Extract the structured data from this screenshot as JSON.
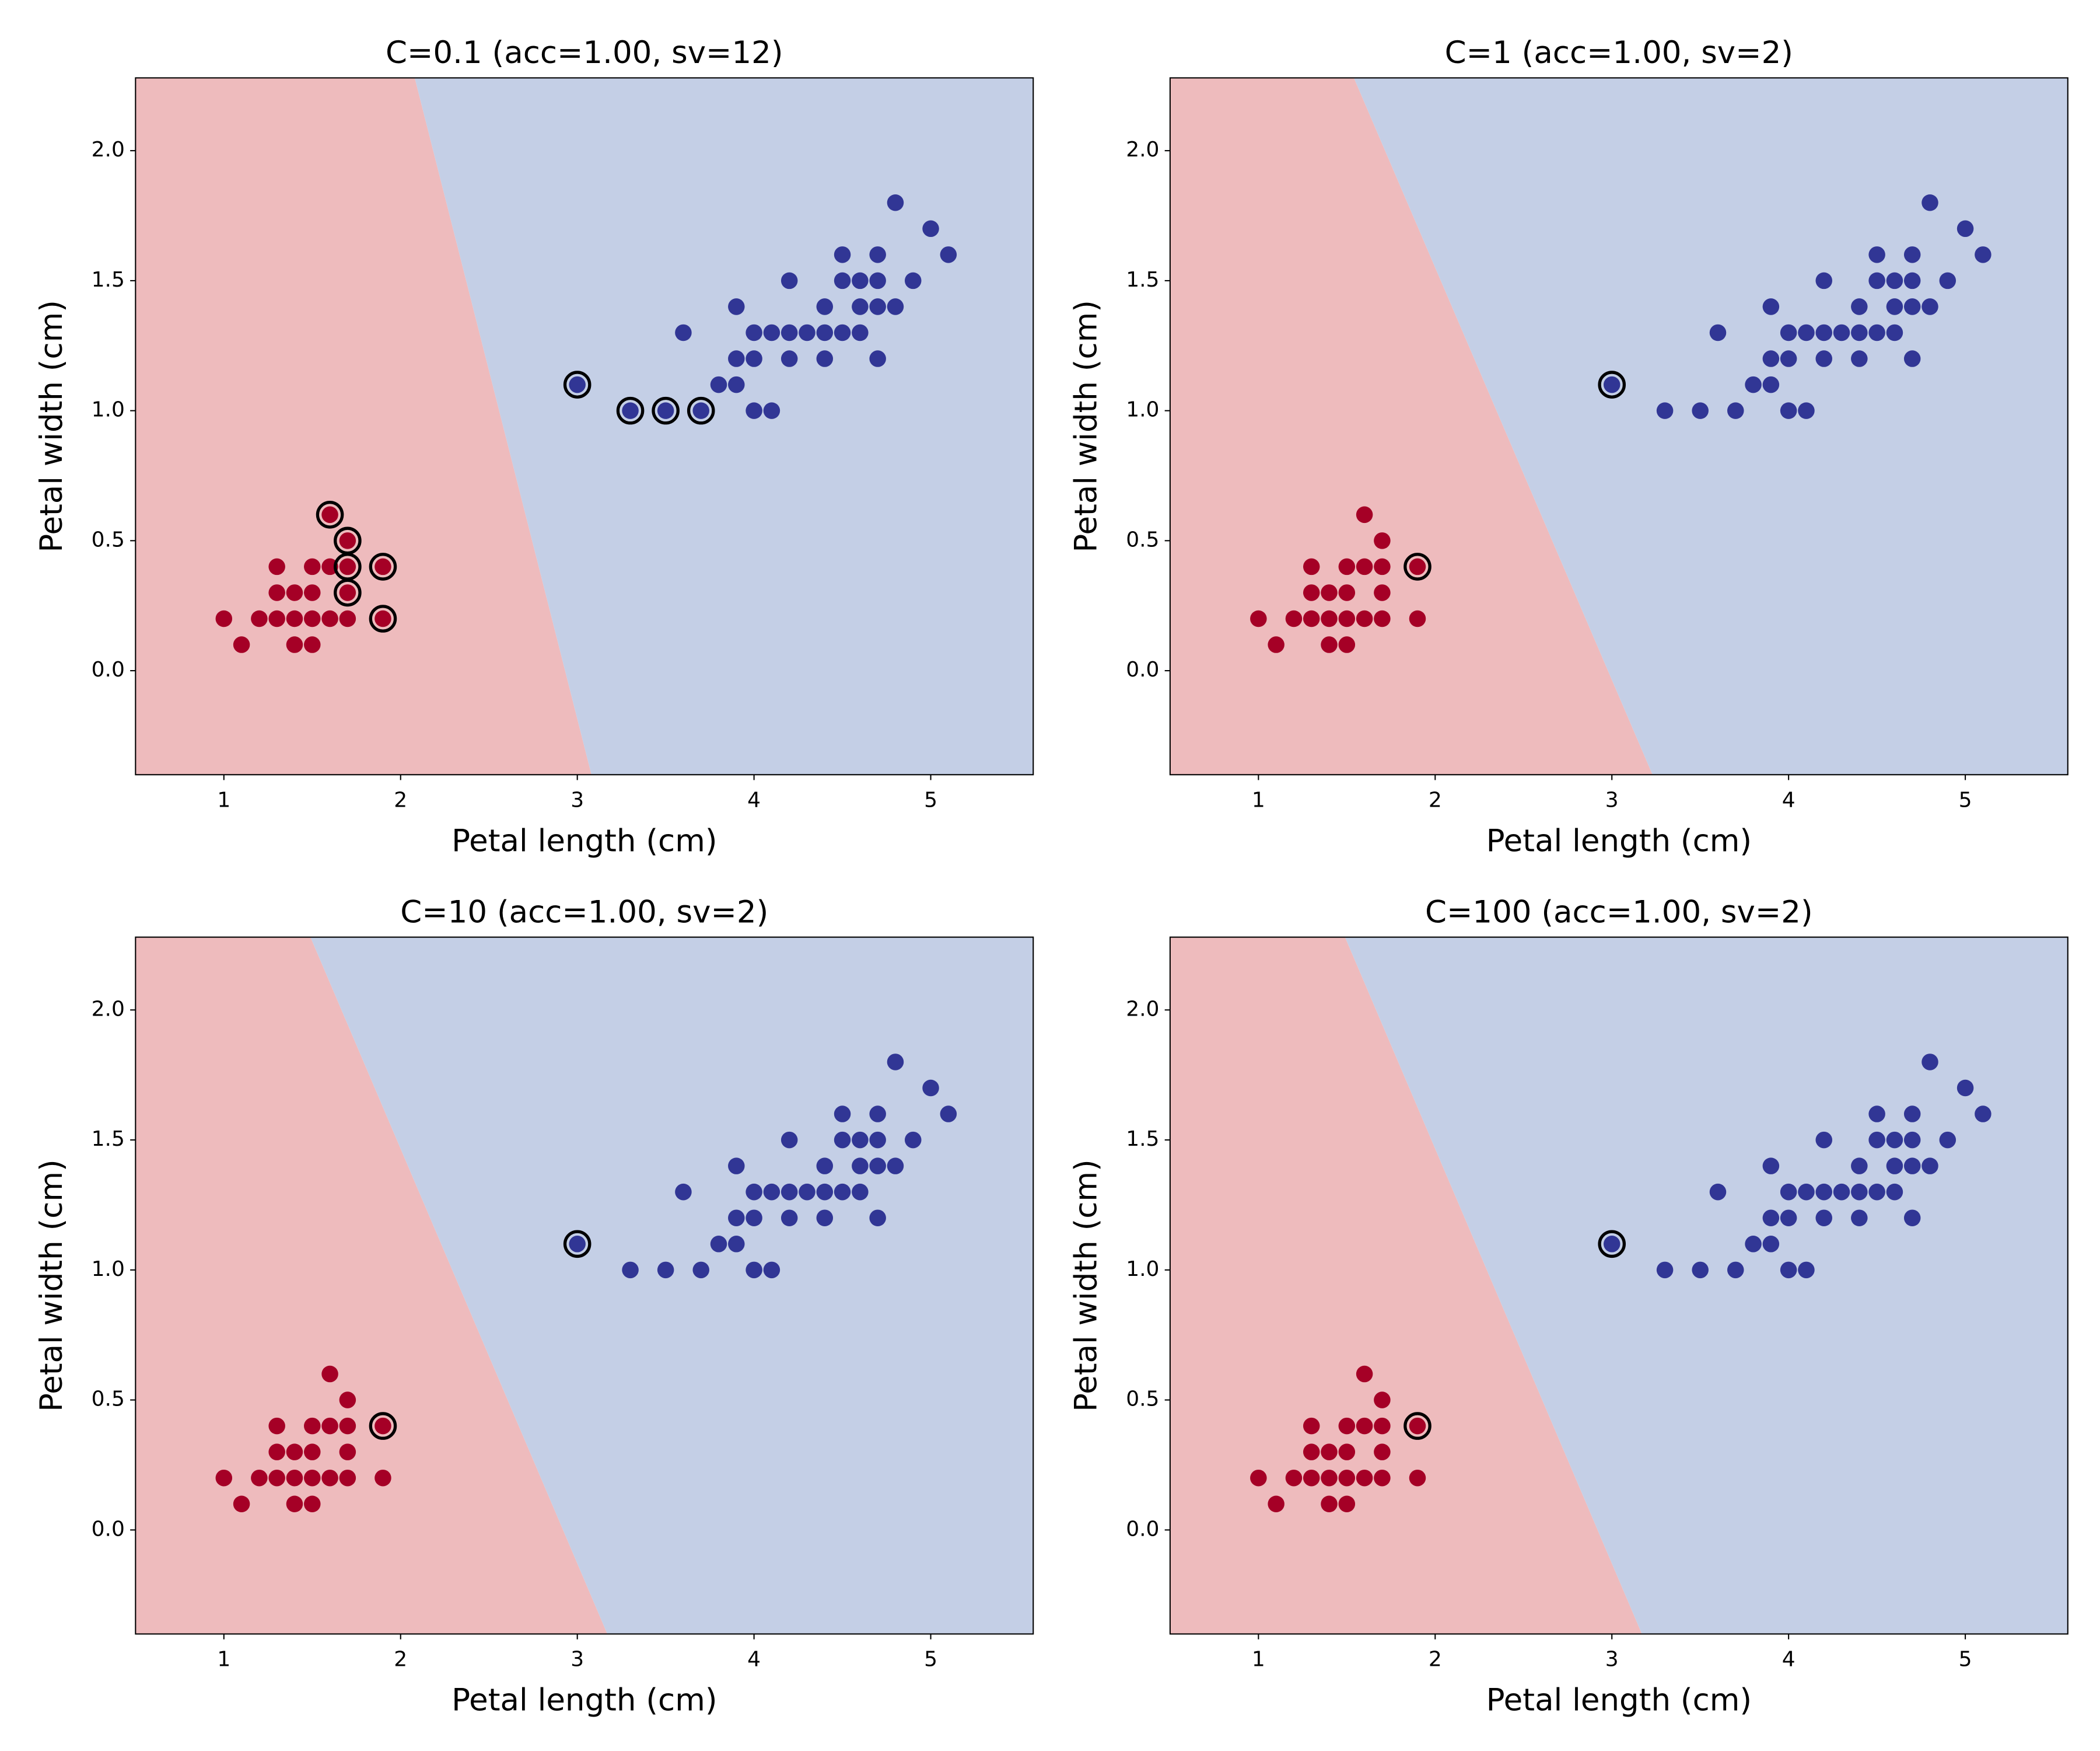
{
  "figure": {
    "background": "#ffffff"
  },
  "chart_data": [
    {
      "type": "scatter",
      "title": "C=0.1 (acc=1.00, sv=12)",
      "xlabel": "Petal length (cm)",
      "ylabel": "Petal width (cm)",
      "xlim": [
        0.5,
        5.58
      ],
      "ylim": [
        -0.4,
        2.28
      ],
      "xticks": [
        "1",
        "2",
        "3",
        "4",
        "5"
      ],
      "yticks": [
        "0.0",
        "0.5",
        "1.0",
        "1.5",
        "2.0"
      ],
      "grid": false,
      "decision_boundary": [
        [
          2.08,
          2.28
        ],
        [
          3.08,
          -0.4
        ]
      ],
      "series": [
        {
          "color": "#a50026",
          "points": [
            [
              1.0,
              0.2
            ],
            [
              1.1,
              0.1
            ],
            [
              1.2,
              0.2
            ],
            [
              1.3,
              0.2
            ],
            [
              1.3,
              0.3
            ],
            [
              1.3,
              0.4
            ],
            [
              1.4,
              0.1
            ],
            [
              1.4,
              0.2
            ],
            [
              1.4,
              0.3
            ],
            [
              1.5,
              0.1
            ],
            [
              1.5,
              0.2
            ],
            [
              1.5,
              0.3
            ],
            [
              1.5,
              0.4
            ],
            [
              1.6,
              0.2
            ],
            [
              1.6,
              0.4
            ],
            [
              1.6,
              0.6
            ],
            [
              1.7,
              0.2
            ],
            [
              1.7,
              0.3
            ],
            [
              1.7,
              0.4
            ],
            [
              1.7,
              0.5
            ],
            [
              1.9,
              0.2
            ],
            [
              1.9,
              0.4
            ]
          ]
        },
        {
          "color": "#313695",
          "points": [
            [
              3.0,
              1.1
            ],
            [
              3.3,
              1.0
            ],
            [
              3.5,
              1.0
            ],
            [
              3.6,
              1.3
            ],
            [
              3.7,
              1.0
            ],
            [
              3.8,
              1.1
            ],
            [
              3.9,
              1.1
            ],
            [
              3.9,
              1.2
            ],
            [
              3.9,
              1.4
            ],
            [
              4.0,
              1.0
            ],
            [
              4.0,
              1.2
            ],
            [
              4.0,
              1.3
            ],
            [
              4.1,
              1.0
            ],
            [
              4.1,
              1.3
            ],
            [
              4.2,
              1.2
            ],
            [
              4.2,
              1.3
            ],
            [
              4.2,
              1.5
            ],
            [
              4.3,
              1.3
            ],
            [
              4.4,
              1.2
            ],
            [
              4.4,
              1.3
            ],
            [
              4.4,
              1.4
            ],
            [
              4.5,
              1.3
            ],
            [
              4.5,
              1.5
            ],
            [
              4.5,
              1.6
            ],
            [
              4.6,
              1.3
            ],
            [
              4.6,
              1.4
            ],
            [
              4.6,
              1.5
            ],
            [
              4.7,
              1.2
            ],
            [
              4.7,
              1.4
            ],
            [
              4.7,
              1.5
            ],
            [
              4.7,
              1.6
            ],
            [
              4.8,
              1.4
            ],
            [
              4.8,
              1.8
            ],
            [
              4.9,
              1.5
            ],
            [
              5.0,
              1.7
            ],
            [
              5.1,
              1.6
            ]
          ]
        }
      ],
      "support_vectors": [
        [
          3.0,
          1.1
        ],
        [
          3.3,
          1.0
        ],
        [
          3.5,
          1.0
        ],
        [
          3.7,
          1.0
        ],
        [
          1.6,
          0.6
        ],
        [
          1.7,
          0.5
        ],
        [
          1.7,
          0.4
        ],
        [
          1.7,
          0.3
        ],
        [
          1.9,
          0.4
        ],
        [
          1.9,
          0.2
        ]
      ],
      "region_colors": {
        "left": "#eebbbd",
        "right": "#c4cfe6"
      }
    },
    {
      "type": "scatter",
      "title": "C=1 (acc=1.00, sv=2)",
      "xlabel": "Petal length (cm)",
      "ylabel": "Petal width (cm)",
      "xlim": [
        0.5,
        5.58
      ],
      "ylim": [
        -0.4,
        2.28
      ],
      "xticks": [
        "1",
        "2",
        "3",
        "4",
        "5"
      ],
      "yticks": [
        "0.0",
        "0.5",
        "1.0",
        "1.5",
        "2.0"
      ],
      "grid": false,
      "decision_boundary": [
        [
          1.54,
          2.28
        ],
        [
          3.23,
          -0.4
        ]
      ],
      "series": [
        {
          "color": "#a50026",
          "points": [
            [
              1.0,
              0.2
            ],
            [
              1.1,
              0.1
            ],
            [
              1.2,
              0.2
            ],
            [
              1.3,
              0.2
            ],
            [
              1.3,
              0.3
            ],
            [
              1.3,
              0.4
            ],
            [
              1.4,
              0.1
            ],
            [
              1.4,
              0.2
            ],
            [
              1.4,
              0.3
            ],
            [
              1.5,
              0.1
            ],
            [
              1.5,
              0.2
            ],
            [
              1.5,
              0.3
            ],
            [
              1.5,
              0.4
            ],
            [
              1.6,
              0.2
            ],
            [
              1.6,
              0.4
            ],
            [
              1.6,
              0.6
            ],
            [
              1.7,
              0.2
            ],
            [
              1.7,
              0.3
            ],
            [
              1.7,
              0.4
            ],
            [
              1.7,
              0.5
            ],
            [
              1.9,
              0.2
            ],
            [
              1.9,
              0.4
            ]
          ]
        },
        {
          "color": "#313695",
          "points": [
            [
              3.0,
              1.1
            ],
            [
              3.3,
              1.0
            ],
            [
              3.5,
              1.0
            ],
            [
              3.6,
              1.3
            ],
            [
              3.7,
              1.0
            ],
            [
              3.8,
              1.1
            ],
            [
              3.9,
              1.1
            ],
            [
              3.9,
              1.2
            ],
            [
              3.9,
              1.4
            ],
            [
              4.0,
              1.0
            ],
            [
              4.0,
              1.2
            ],
            [
              4.0,
              1.3
            ],
            [
              4.1,
              1.0
            ],
            [
              4.1,
              1.3
            ],
            [
              4.2,
              1.2
            ],
            [
              4.2,
              1.3
            ],
            [
              4.2,
              1.5
            ],
            [
              4.3,
              1.3
            ],
            [
              4.4,
              1.2
            ],
            [
              4.4,
              1.3
            ],
            [
              4.4,
              1.4
            ],
            [
              4.5,
              1.3
            ],
            [
              4.5,
              1.5
            ],
            [
              4.5,
              1.6
            ],
            [
              4.6,
              1.3
            ],
            [
              4.6,
              1.4
            ],
            [
              4.6,
              1.5
            ],
            [
              4.7,
              1.2
            ],
            [
              4.7,
              1.4
            ],
            [
              4.7,
              1.5
            ],
            [
              4.7,
              1.6
            ],
            [
              4.8,
              1.4
            ],
            [
              4.8,
              1.8
            ],
            [
              4.9,
              1.5
            ],
            [
              5.0,
              1.7
            ],
            [
              5.1,
              1.6
            ]
          ]
        }
      ],
      "support_vectors": [
        [
          3.0,
          1.1
        ],
        [
          1.9,
          0.4
        ]
      ],
      "region_colors": {
        "left": "#eebbbd",
        "right": "#c4cfe6"
      }
    },
    {
      "type": "scatter",
      "title": "C=10 (acc=1.00, sv=2)",
      "xlabel": "Petal length (cm)",
      "ylabel": "Petal width (cm)",
      "xlim": [
        0.5,
        5.58
      ],
      "ylim": [
        -0.4,
        2.28
      ],
      "xticks": [
        "1",
        "2",
        "3",
        "4",
        "5"
      ],
      "yticks": [
        "0.0",
        "0.5",
        "1.0",
        "1.5",
        "2.0"
      ],
      "grid": false,
      "decision_boundary": [
        [
          1.49,
          2.28
        ],
        [
          3.17,
          -0.4
        ]
      ],
      "series": [
        {
          "color": "#a50026",
          "points": [
            [
              1.0,
              0.2
            ],
            [
              1.1,
              0.1
            ],
            [
              1.2,
              0.2
            ],
            [
              1.3,
              0.2
            ],
            [
              1.3,
              0.3
            ],
            [
              1.3,
              0.4
            ],
            [
              1.4,
              0.1
            ],
            [
              1.4,
              0.2
            ],
            [
              1.4,
              0.3
            ],
            [
              1.5,
              0.1
            ],
            [
              1.5,
              0.2
            ],
            [
              1.5,
              0.3
            ],
            [
              1.5,
              0.4
            ],
            [
              1.6,
              0.2
            ],
            [
              1.6,
              0.4
            ],
            [
              1.6,
              0.6
            ],
            [
              1.7,
              0.2
            ],
            [
              1.7,
              0.3
            ],
            [
              1.7,
              0.4
            ],
            [
              1.7,
              0.5
            ],
            [
              1.9,
              0.2
            ],
            [
              1.9,
              0.4
            ]
          ]
        },
        {
          "color": "#313695",
          "points": [
            [
              3.0,
              1.1
            ],
            [
              3.3,
              1.0
            ],
            [
              3.5,
              1.0
            ],
            [
              3.6,
              1.3
            ],
            [
              3.7,
              1.0
            ],
            [
              3.8,
              1.1
            ],
            [
              3.9,
              1.1
            ],
            [
              3.9,
              1.2
            ],
            [
              3.9,
              1.4
            ],
            [
              4.0,
              1.0
            ],
            [
              4.0,
              1.2
            ],
            [
              4.0,
              1.3
            ],
            [
              4.1,
              1.0
            ],
            [
              4.1,
              1.3
            ],
            [
              4.2,
              1.2
            ],
            [
              4.2,
              1.3
            ],
            [
              4.2,
              1.5
            ],
            [
              4.3,
              1.3
            ],
            [
              4.4,
              1.2
            ],
            [
              4.4,
              1.3
            ],
            [
              4.4,
              1.4
            ],
            [
              4.5,
              1.3
            ],
            [
              4.5,
              1.5
            ],
            [
              4.5,
              1.6
            ],
            [
              4.6,
              1.3
            ],
            [
              4.6,
              1.4
            ],
            [
              4.6,
              1.5
            ],
            [
              4.7,
              1.2
            ],
            [
              4.7,
              1.4
            ],
            [
              4.7,
              1.5
            ],
            [
              4.7,
              1.6
            ],
            [
              4.8,
              1.4
            ],
            [
              4.8,
              1.8
            ],
            [
              4.9,
              1.5
            ],
            [
              5.0,
              1.7
            ],
            [
              5.1,
              1.6
            ]
          ]
        }
      ],
      "support_vectors": [
        [
          3.0,
          1.1
        ],
        [
          1.9,
          0.4
        ]
      ],
      "region_colors": {
        "left": "#eebbbd",
        "right": "#c4cfe6"
      }
    },
    {
      "type": "scatter",
      "title": "C=100 (acc=1.00, sv=2)",
      "xlabel": "Petal length (cm)",
      "ylabel": "Petal width (cm)",
      "xlim": [
        0.5,
        5.58
      ],
      "ylim": [
        -0.4,
        2.28
      ],
      "xticks": [
        "1",
        "2",
        "3",
        "4",
        "5"
      ],
      "yticks": [
        "0.0",
        "0.5",
        "1.0",
        "1.5",
        "2.0"
      ],
      "grid": false,
      "decision_boundary": [
        [
          1.49,
          2.28
        ],
        [
          3.17,
          -0.4
        ]
      ],
      "series": [
        {
          "color": "#a50026",
          "points": [
            [
              1.0,
              0.2
            ],
            [
              1.1,
              0.1
            ],
            [
              1.2,
              0.2
            ],
            [
              1.3,
              0.2
            ],
            [
              1.3,
              0.3
            ],
            [
              1.3,
              0.4
            ],
            [
              1.4,
              0.1
            ],
            [
              1.4,
              0.2
            ],
            [
              1.4,
              0.3
            ],
            [
              1.5,
              0.1
            ],
            [
              1.5,
              0.2
            ],
            [
              1.5,
              0.3
            ],
            [
              1.5,
              0.4
            ],
            [
              1.6,
              0.2
            ],
            [
              1.6,
              0.4
            ],
            [
              1.6,
              0.6
            ],
            [
              1.7,
              0.2
            ],
            [
              1.7,
              0.3
            ],
            [
              1.7,
              0.4
            ],
            [
              1.7,
              0.5
            ],
            [
              1.9,
              0.2
            ],
            [
              1.9,
              0.4
            ]
          ]
        },
        {
          "color": "#313695",
          "points": [
            [
              3.0,
              1.1
            ],
            [
              3.3,
              1.0
            ],
            [
              3.5,
              1.0
            ],
            [
              3.6,
              1.3
            ],
            [
              3.7,
              1.0
            ],
            [
              3.8,
              1.1
            ],
            [
              3.9,
              1.1
            ],
            [
              3.9,
              1.2
            ],
            [
              3.9,
              1.4
            ],
            [
              4.0,
              1.0
            ],
            [
              4.0,
              1.2
            ],
            [
              4.0,
              1.3
            ],
            [
              4.1,
              1.0
            ],
            [
              4.1,
              1.3
            ],
            [
              4.2,
              1.2
            ],
            [
              4.2,
              1.3
            ],
            [
              4.2,
              1.5
            ],
            [
              4.3,
              1.3
            ],
            [
              4.4,
              1.2
            ],
            [
              4.4,
              1.3
            ],
            [
              4.4,
              1.4
            ],
            [
              4.5,
              1.3
            ],
            [
              4.5,
              1.5
            ],
            [
              4.5,
              1.6
            ],
            [
              4.6,
              1.3
            ],
            [
              4.6,
              1.4
            ],
            [
              4.6,
              1.5
            ],
            [
              4.7,
              1.2
            ],
            [
              4.7,
              1.4
            ],
            [
              4.7,
              1.5
            ],
            [
              4.7,
              1.6
            ],
            [
              4.8,
              1.4
            ],
            [
              4.8,
              1.8
            ],
            [
              4.9,
              1.5
            ],
            [
              5.0,
              1.7
            ],
            [
              5.1,
              1.6
            ]
          ]
        }
      ],
      "support_vectors": [
        [
          3.0,
          1.1
        ],
        [
          1.9,
          0.4
        ]
      ],
      "region_colors": {
        "left": "#eebbbd",
        "right": "#c4cfe6"
      }
    }
  ]
}
